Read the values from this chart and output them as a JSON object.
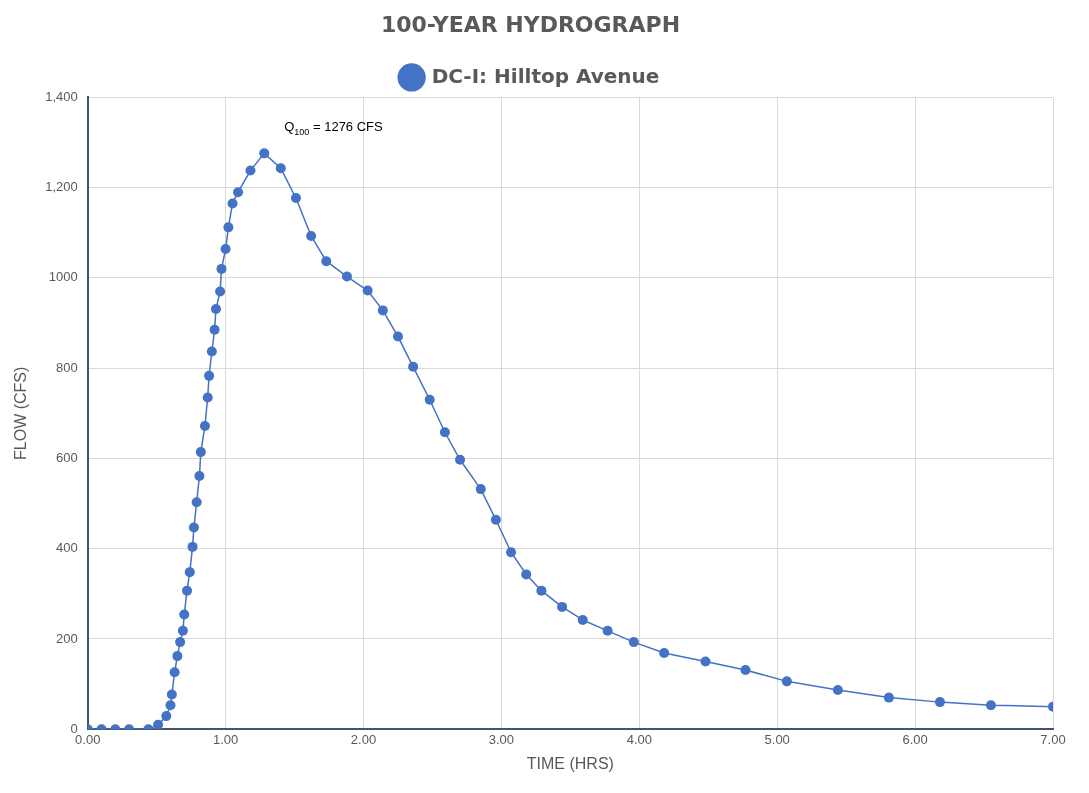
{
  "chart_data": {
    "type": "line",
    "title": "100-YEAR HYDROGRAPH",
    "xlabel": "TIME (HRS)",
    "ylabel": "FLOW (CFS)",
    "xlim": [
      0,
      7
    ],
    "ylim": [
      0,
      1400
    ],
    "xticks": [
      {
        "value": 0,
        "label": "0.00"
      },
      {
        "value": 1,
        "label": "1.00"
      },
      {
        "value": 2,
        "label": "2.00"
      },
      {
        "value": 3,
        "label": "3.00"
      },
      {
        "value": 4,
        "label": "4.00"
      },
      {
        "value": 5,
        "label": "5.00"
      },
      {
        "value": 6,
        "label": "6.00"
      },
      {
        "value": 7,
        "label": "7.00"
      }
    ],
    "yticks": [
      0,
      200,
      400,
      600,
      800,
      1000,
      {
        "value": 1200,
        "label": "1,200"
      },
      {
        "value": 1400,
        "label": "1,400"
      }
    ],
    "grid": true,
    "legend": "top",
    "marker": "circle",
    "line_style": "solid",
    "annotations": [
      {
        "text": "Q$_{100}$ = 1276 CFS",
        "x": 1.28,
        "y": 1276
      }
    ],
    "series": [
      {
        "name": "DC-I: Hilltop Avenue",
        "color": "#4472c4",
        "x": [
          0,
          0.1,
          0.2,
          0.3,
          0.44,
          0.51,
          0.57,
          0.6,
          0.61,
          0.63,
          0.65,
          0.67,
          0.69,
          0.7,
          0.72,
          0.74,
          0.76,
          0.77,
          0.79,
          0.81,
          0.82,
          0.85,
          0.87,
          0.88,
          0.9,
          0.92,
          0.93,
          0.96,
          0.97,
          1.0,
          1.02,
          1.05,
          1.09,
          1.18,
          1.28,
          1.4,
          1.51,
          1.62,
          1.73,
          1.88,
          2.03,
          2.14,
          2.25,
          2.36,
          2.48,
          2.59,
          2.7,
          2.85,
          2.96,
          3.07,
          3.18,
          3.29,
          3.44,
          3.59,
          3.77,
          3.96,
          4.18,
          4.48,
          4.77,
          5.07,
          5.44,
          5.81,
          6.18,
          6.55,
          7.0
        ],
        "values": [
          0,
          0,
          0,
          0,
          0,
          10,
          29,
          53,
          77,
          126,
          162,
          193,
          218,
          254,
          307,
          348,
          404,
          447,
          503,
          561,
          614,
          672,
          735,
          783,
          837,
          885,
          931,
          970,
          1020,
          1064,
          1112,
          1165,
          1190,
          1238,
          1276,
          1243,
          1177,
          1093,
          1037,
          1003,
          972,
          928,
          870,
          803,
          730,
          658,
          597,
          532,
          464,
          392,
          343,
          307,
          271,
          242,
          218,
          193,
          169,
          150,
          131,
          106,
          87,
          70,
          60,
          53,
          50
        ]
      }
    ]
  }
}
